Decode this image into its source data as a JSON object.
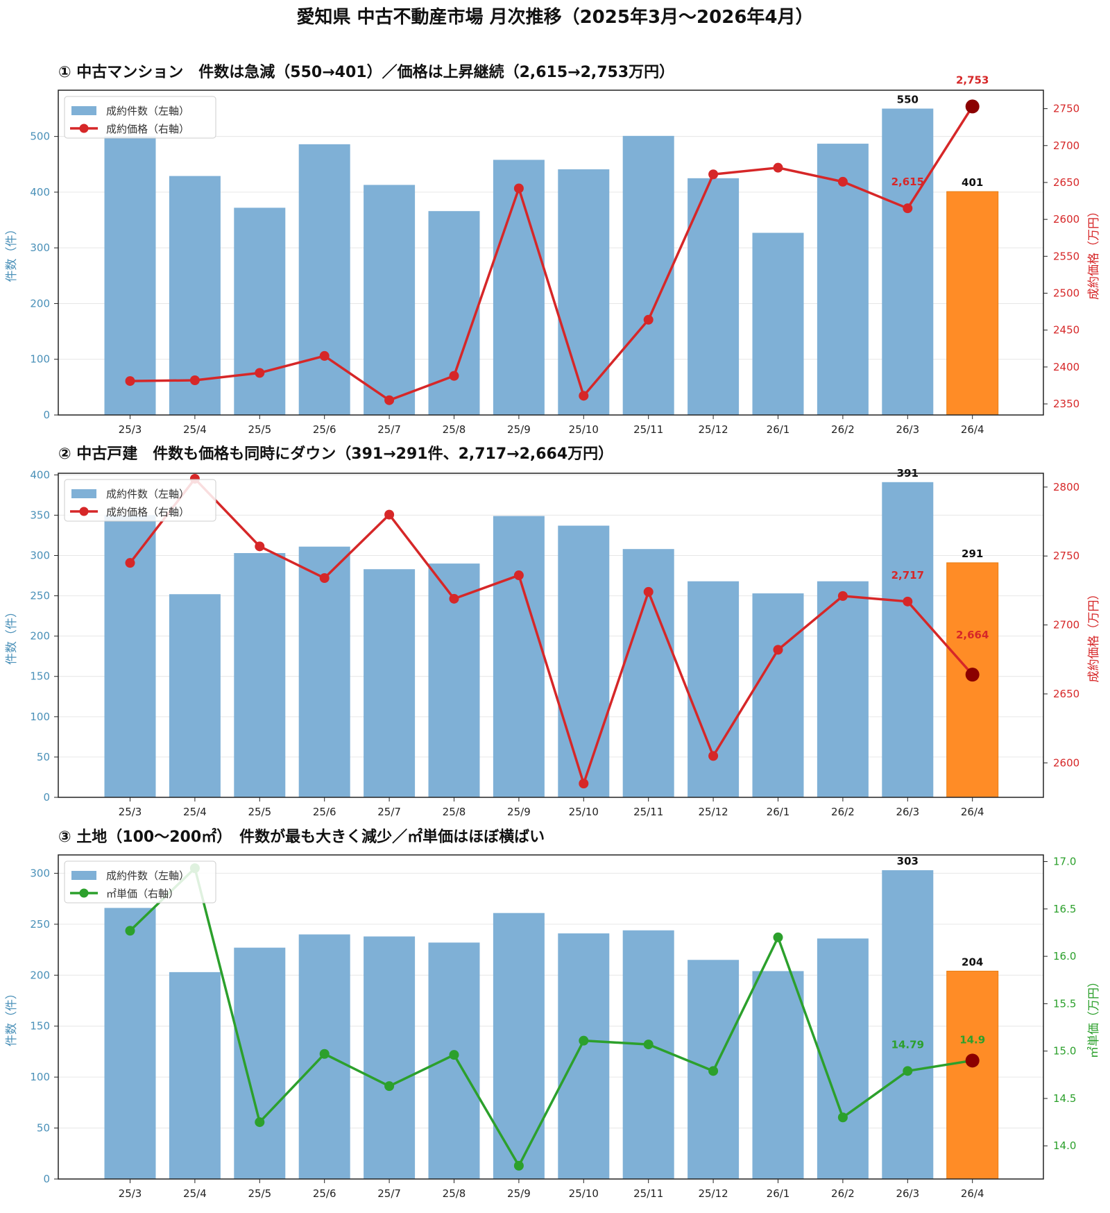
{
  "page_title": "愛知県 中古不動産市場 月次推移（2025年3月〜2026年4月）",
  "colors": {
    "bar": "#7fb0d6",
    "bar_highlight": "#ff8c26",
    "price_line": "#d62728",
    "unit_price_line": "#2ca02c",
    "highlight_marker": "#8b0000",
    "left_axis": "#4a90b8"
  },
  "chart_data": [
    {
      "type": "bar",
      "panel_title": "① 中古マンション　件数は急減（550→401）／価格は上昇継続（2,615→2,753万円）",
      "categories": [
        "25/3",
        "25/4",
        "25/5",
        "25/6",
        "25/7",
        "25/8",
        "25/9",
        "25/10",
        "25/11",
        "25/12",
        "26/1",
        "26/2",
        "26/3",
        "26/4"
      ],
      "series": [
        {
          "name": "成約件数（左軸）",
          "axis": "left",
          "type": "bar",
          "values": [
            500,
            429,
            372,
            486,
            413,
            366,
            458,
            441,
            501,
            425,
            327,
            487,
            550,
            401
          ]
        },
        {
          "name": "成約価格（右軸）",
          "axis": "right",
          "type": "line",
          "values": [
            2381,
            2382,
            2392,
            2415,
            2355,
            2388,
            2642,
            2361,
            2464,
            2661,
            2670,
            2651,
            2615,
            2753
          ]
        }
      ],
      "ylabel_left": "件数（件）",
      "ylabel_right": "成約価格（万円）",
      "ylim_left": [
        0,
        583
      ],
      "ylim_right": [
        2335,
        2775
      ],
      "yticks_left": [
        0,
        100,
        200,
        300,
        400,
        500
      ],
      "yticks_right": [
        2350,
        2400,
        2450,
        2500,
        2550,
        2600,
        2650,
        2700,
        2750
      ],
      "bar_labels": [
        {
          "index": 12,
          "text": "550"
        },
        {
          "index": 13,
          "text": "401"
        }
      ],
      "line_labels": [
        {
          "index": 12,
          "text": "2,615"
        },
        {
          "index": 13,
          "text": "2,753"
        }
      ],
      "legend": "top-left",
      "grid": true
    },
    {
      "type": "bar",
      "panel_title": "② 中古戸建　件数も価格も同時にダウン（391→291件、2,717→2,664万円）",
      "categories": [
        "25/3",
        "25/4",
        "25/5",
        "25/6",
        "25/7",
        "25/8",
        "25/9",
        "25/10",
        "25/11",
        "25/12",
        "26/1",
        "26/2",
        "26/3",
        "26/4"
      ],
      "series": [
        {
          "name": "成約件数（左軸）",
          "axis": "left",
          "type": "bar",
          "values": [
            350,
            252,
            303,
            311,
            283,
            290,
            349,
            337,
            308,
            268,
            253,
            268,
            391,
            291
          ]
        },
        {
          "name": "成約価格（右軸）",
          "axis": "right",
          "type": "line",
          "values": [
            2745,
            2806,
            2757,
            2734,
            2780,
            2719,
            2736,
            2585,
            2724,
            2605,
            2682,
            2721,
            2717,
            2664
          ]
        }
      ],
      "ylabel_left": "件数（件）",
      "ylabel_right": "成約価格（万円）",
      "ylim_left": [
        0,
        402
      ],
      "ylim_right": [
        2575,
        2810
      ],
      "yticks_left": [
        0,
        50,
        100,
        150,
        200,
        250,
        300,
        350,
        400
      ],
      "yticks_right": [
        2600,
        2650,
        2700,
        2750,
        2800
      ],
      "bar_labels": [
        {
          "index": 12,
          "text": "391"
        },
        {
          "index": 13,
          "text": "291"
        }
      ],
      "line_labels": [
        {
          "index": 12,
          "text": "2,717"
        },
        {
          "index": 13,
          "text": "2,664"
        }
      ],
      "legend": "top-left",
      "grid": true
    },
    {
      "type": "bar",
      "panel_title": "③ 土地（100〜200㎡）　件数が最も大きく減少／㎡単価はほぼ横ばい",
      "categories": [
        "25/3",
        "25/4",
        "25/5",
        "25/6",
        "25/7",
        "25/8",
        "25/9",
        "25/10",
        "25/11",
        "25/12",
        "26/1",
        "26/2",
        "26/3",
        "26/4"
      ],
      "series": [
        {
          "name": "成約件数（左軸）",
          "axis": "left",
          "type": "bar",
          "values": [
            266,
            203,
            227,
            240,
            238,
            232,
            261,
            241,
            244,
            215,
            204,
            236,
            303,
            204
          ]
        },
        {
          "name": "㎡単価（右軸）",
          "axis": "right",
          "type": "line",
          "values": [
            16.27,
            16.93,
            14.25,
            14.97,
            14.63,
            14.96,
            13.79,
            15.11,
            15.07,
            14.79,
            16.2,
            14.3,
            14.79,
            14.9
          ]
        }
      ],
      "ylabel_left": "件数（件）",
      "ylabel_right": "㎡単価（万円）",
      "ylim_left": [
        0,
        318
      ],
      "ylim_right": [
        13.65,
        17.07
      ],
      "yticks_left": [
        0,
        50,
        100,
        150,
        200,
        250,
        300
      ],
      "yticks_right": [
        14.0,
        14.5,
        15.0,
        15.5,
        16.0,
        16.5,
        17.0
      ],
      "bar_labels": [
        {
          "index": 12,
          "text": "303"
        },
        {
          "index": 13,
          "text": "204"
        }
      ],
      "line_labels": [
        {
          "index": 12,
          "text": "14.79"
        },
        {
          "index": 13,
          "text": "14.9"
        }
      ],
      "legend": "top-left",
      "grid": true
    }
  ]
}
